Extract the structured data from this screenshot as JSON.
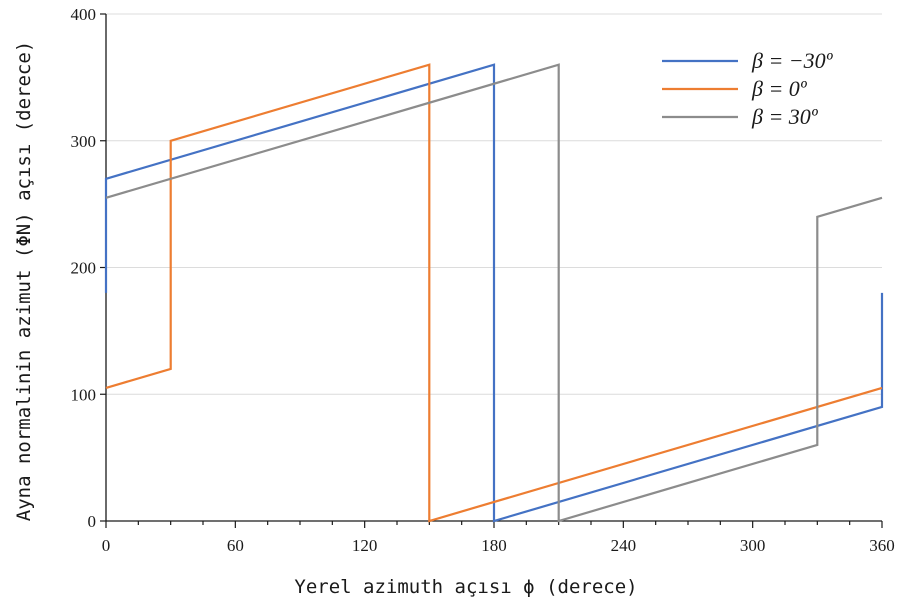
{
  "chart_data": {
    "type": "line",
    "xlabel": "Yerel azimuth açısı ϕ  (derece)",
    "ylabel": "Ayna normalinin azimut (ΦN) açısı (derece)",
    "xlim": [
      0,
      360
    ],
    "ylim": [
      0,
      400
    ],
    "xticks": [
      0,
      60,
      120,
      180,
      240,
      300,
      360
    ],
    "yticks": [
      0,
      100,
      200,
      300,
      400
    ],
    "grid": "horizontal",
    "legend_position": "top-right",
    "series": [
      {
        "name": "β = −30º",
        "color": "#4472C4",
        "points": [
          [
            0,
            180
          ],
          [
            0,
            270
          ],
          [
            180,
            360
          ],
          [
            180,
            0
          ],
          [
            360,
            90
          ],
          [
            360,
            180
          ]
        ]
      },
      {
        "name": "β = 0º",
        "color": "#ED7D31",
        "points": [
          [
            0,
            105
          ],
          [
            30,
            120
          ],
          [
            30,
            300
          ],
          [
            150,
            360
          ],
          [
            150,
            0
          ],
          [
            360,
            105
          ]
        ]
      },
      {
        "name": "β = 30º",
        "color": "#8C8C8C",
        "points": [
          [
            0,
            255
          ],
          [
            210,
            360
          ],
          [
            210,
            0
          ],
          [
            330,
            60
          ],
          [
            330,
            240
          ],
          [
            360,
            255
          ]
        ]
      }
    ]
  }
}
